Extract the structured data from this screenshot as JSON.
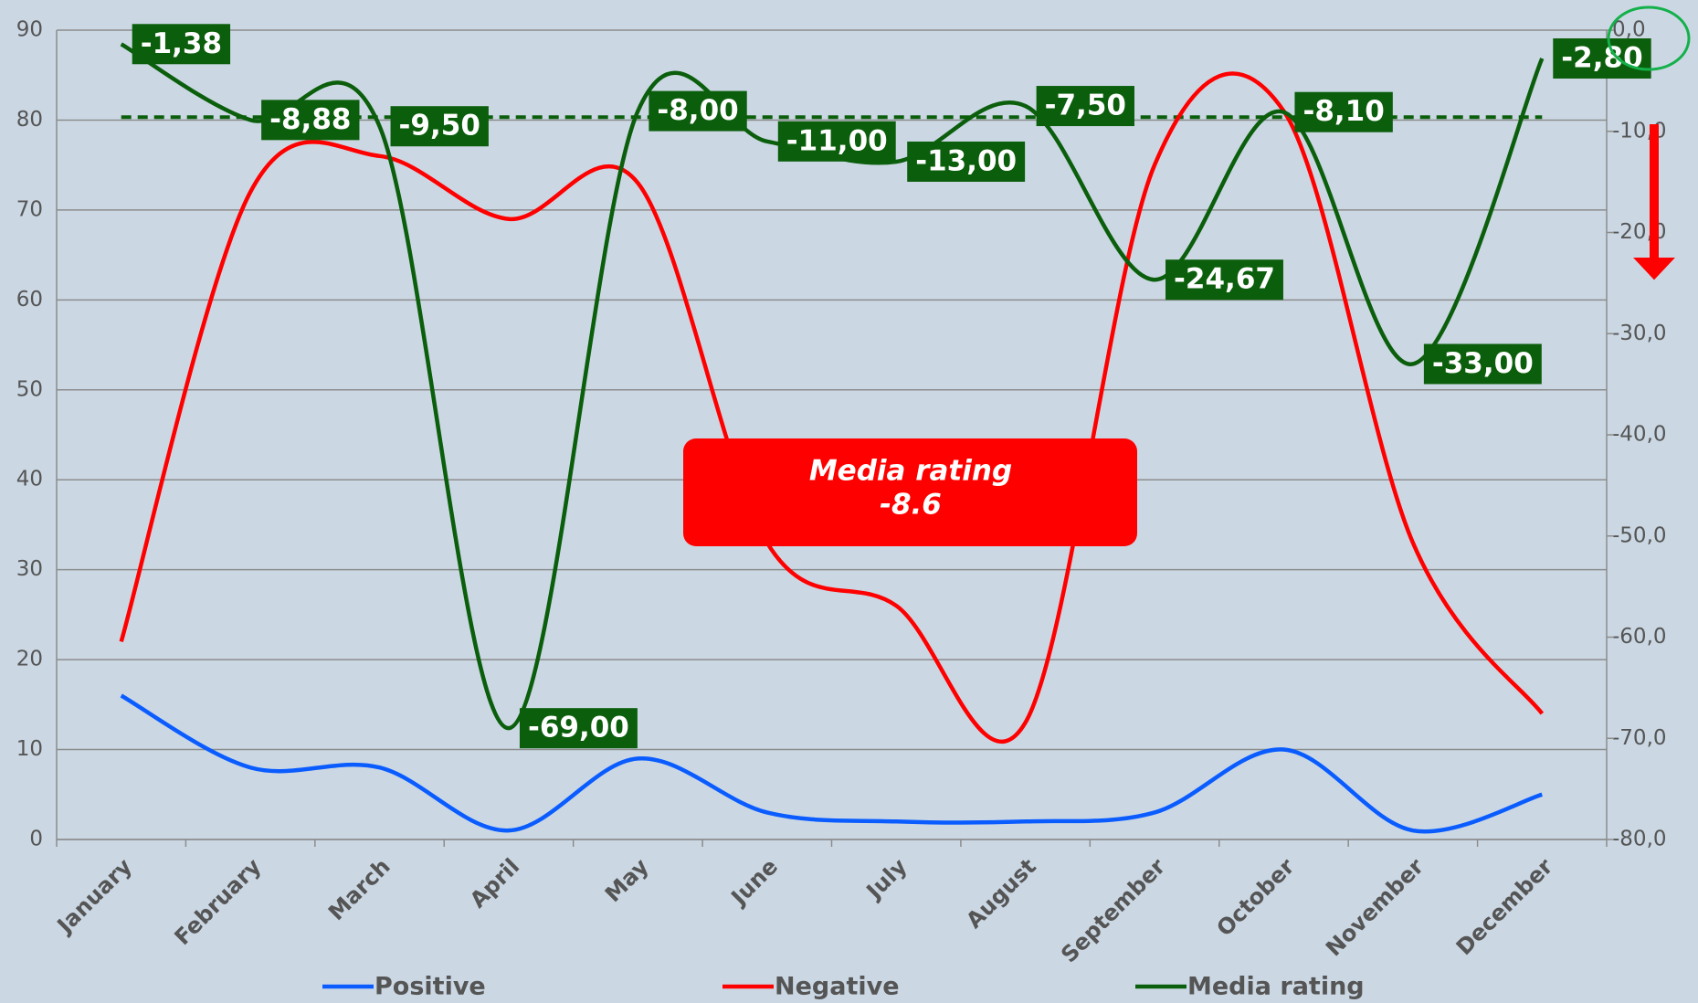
{
  "chart_data": {
    "type": "line",
    "categories": [
      "January",
      "February",
      "March",
      "April",
      "May",
      "June",
      "July",
      "August",
      "September",
      "October",
      "November",
      "December"
    ],
    "series": [
      {
        "name": "Positive",
        "color": "#0a5cff",
        "values": [
          16,
          8,
          8,
          1,
          9,
          3,
          2,
          2,
          3,
          10,
          1,
          5
        ]
      },
      {
        "name": "Negative",
        "color": "#ff0000",
        "values": [
          22,
          72,
          76,
          69,
          73,
          33,
          26,
          13,
          75,
          81,
          33,
          14
        ]
      },
      {
        "name": "Media rating",
        "color": "#0b5e0b",
        "axis": "y2",
        "values": [
          -1.38,
          -8.88,
          -9.5,
          -69,
          -8,
          -11,
          -13,
          -7.5,
          -24.67,
          -8.1,
          -33,
          -2.8
        ],
        "value_labels": [
          "-1,38",
          "-8,88",
          "-9,50",
          "-69,00",
          "-8,00",
          "-11,00",
          "-13,00",
          "-7,50",
          "-24,67",
          "-8,10",
          "-33,00",
          "-2,80"
        ]
      }
    ],
    "ylim": [
      0,
      90
    ],
    "yticks": [
      0,
      10,
      20,
      30,
      40,
      50,
      60,
      70,
      80,
      90
    ],
    "y2lim": [
      -80,
      0
    ],
    "y2ticks": [
      {
        "value": -80,
        "label": "-80,0"
      },
      {
        "value": -70,
        "label": "-70,0"
      },
      {
        "value": -60,
        "label": "-60,0"
      },
      {
        "value": -50,
        "label": "-50,0"
      },
      {
        "value": -40,
        "label": "-40,0"
      },
      {
        "value": -30,
        "label": "-30,0"
      },
      {
        "value": -20,
        "label": "-20,0"
      },
      {
        "value": -10,
        "label": "-10,0"
      },
      {
        "value": 0,
        "label": "0,0"
      }
    ],
    "grid": true,
    "annotation": {
      "title": "Media rating",
      "value": -8.6
    }
  }
}
